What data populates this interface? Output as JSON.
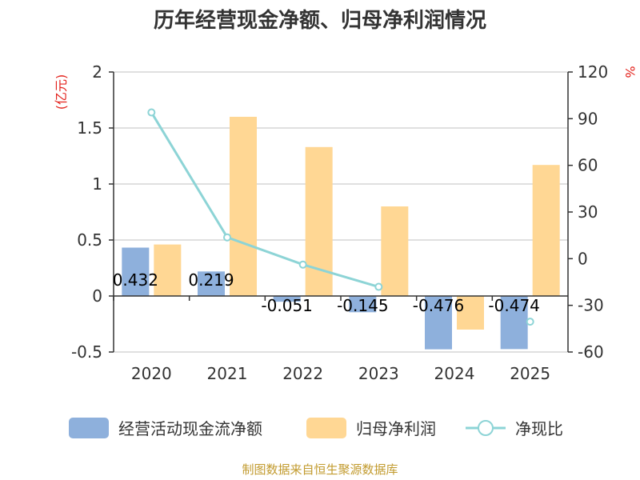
{
  "title": "历年经营现金净额、归母净利润情况",
  "chart_data": {
    "type": "bar",
    "categories": [
      "2020",
      "2021",
      "2022",
      "2023",
      "2024",
      "2025"
    ],
    "series": [
      {
        "name": "经营活动现金流净额",
        "kind": "bar",
        "axis": "left",
        "color": "#8eb0dc",
        "values": [
          0.432,
          0.219,
          -0.051,
          -0.145,
          -0.476,
          -0.474
        ],
        "labels": [
          "0.432",
          "0.219",
          "-0.051",
          "-0.145",
          "-0.476",
          "-0.474"
        ]
      },
      {
        "name": "归母净利润",
        "kind": "bar",
        "axis": "left",
        "color": "#ffd794",
        "values": [
          0.46,
          1.6,
          1.33,
          0.8,
          -0.3,
          1.17
        ]
      },
      {
        "name": "净现比",
        "kind": "line",
        "axis": "right",
        "color": "#8dd4d6",
        "values": [
          94,
          13.7,
          -3.8,
          -18.1,
          null,
          -40.5
        ]
      }
    ],
    "left_axis": {
      "unit": "(亿元)",
      "min": -0.5,
      "max": 2,
      "ticks": [
        -0.5,
        0,
        0.5,
        1,
        1.5,
        2
      ],
      "tick_labels": [
        "-0.5",
        "0",
        "0.5",
        "1",
        "1.5",
        "2"
      ]
    },
    "right_axis": {
      "unit": "%",
      "min": -60,
      "max": 120,
      "ticks": [
        -60,
        -30,
        0,
        30,
        60,
        90,
        120
      ],
      "tick_labels": [
        "-60",
        "-30",
        "0",
        "30",
        "60",
        "90",
        "120"
      ]
    },
    "legend": [
      "经营活动现金流净额",
      "归母净利润",
      "净现比"
    ],
    "legend_position": "bottom",
    "grid": true
  },
  "source": "制图数据来自恒生聚源数据库"
}
